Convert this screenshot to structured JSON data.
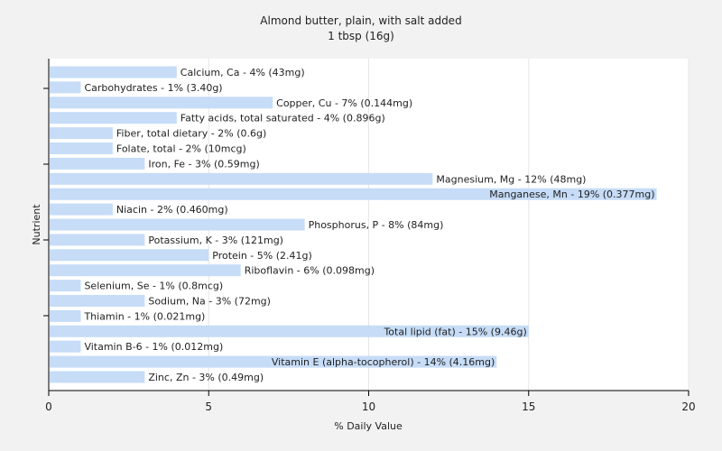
{
  "chart_data": {
    "type": "bar",
    "orientation": "horizontal",
    "title": "Almond butter, plain, with salt added",
    "subtitle": "1 tbsp (16g)",
    "xlabel": "% Daily Value",
    "ylabel": "Nutrient",
    "xlim": [
      0,
      20
    ],
    "xticks": [
      "0",
      "5",
      "10",
      "15",
      "20"
    ],
    "grid": true,
    "bar_color": "#c6dcf7",
    "categories": [
      "Calcium, Ca",
      "Carbohydrates",
      "Copper, Cu",
      "Fatty acids, total saturated",
      "Fiber, total dietary",
      "Folate, total",
      "Iron, Fe",
      "Magnesium, Mg",
      "Manganese, Mn",
      "Niacin",
      "Phosphorus, P",
      "Potassium, K",
      "Protein",
      "Riboflavin",
      "Selenium, Se",
      "Sodium, Na",
      "Thiamin",
      "Total lipid (fat)",
      "Vitamin B-6",
      "Vitamin E (alpha-tocopherol)",
      "Zinc, Zn"
    ],
    "values": [
      4,
      1,
      7,
      4,
      2,
      2,
      3,
      12,
      19,
      2,
      8,
      3,
      5,
      6,
      1,
      3,
      1,
      15,
      1,
      14,
      3
    ],
    "labels": [
      "Calcium, Ca - 4% (43mg)",
      "Carbohydrates - 1% (3.40g)",
      "Copper, Cu - 7% (0.144mg)",
      "Fatty acids, total saturated - 4% (0.896g)",
      "Fiber, total dietary - 2% (0.6g)",
      "Folate, total - 2% (10mcg)",
      "Iron, Fe - 3% (0.59mg)",
      "Magnesium, Mg - 12% (48mg)",
      "Manganese, Mn - 19% (0.377mg)",
      "Niacin - 2% (0.460mg)",
      "Phosphorus, P - 8% (84mg)",
      "Potassium, K - 3% (121mg)",
      "Protein - 5% (2.41g)",
      "Riboflavin - 6% (0.098mg)",
      "Selenium, Se - 1% (0.8mcg)",
      "Sodium, Na - 3% (72mg)",
      "Thiamin - 1% (0.021mg)",
      "Total lipid (fat) - 15% (9.46g)",
      "Vitamin B-6 - 1% (0.012mg)",
      "Vitamin E (alpha-tocopherol) - 14% (4.16mg)",
      "Zinc, Zn - 3% (0.49mg)"
    ]
  }
}
